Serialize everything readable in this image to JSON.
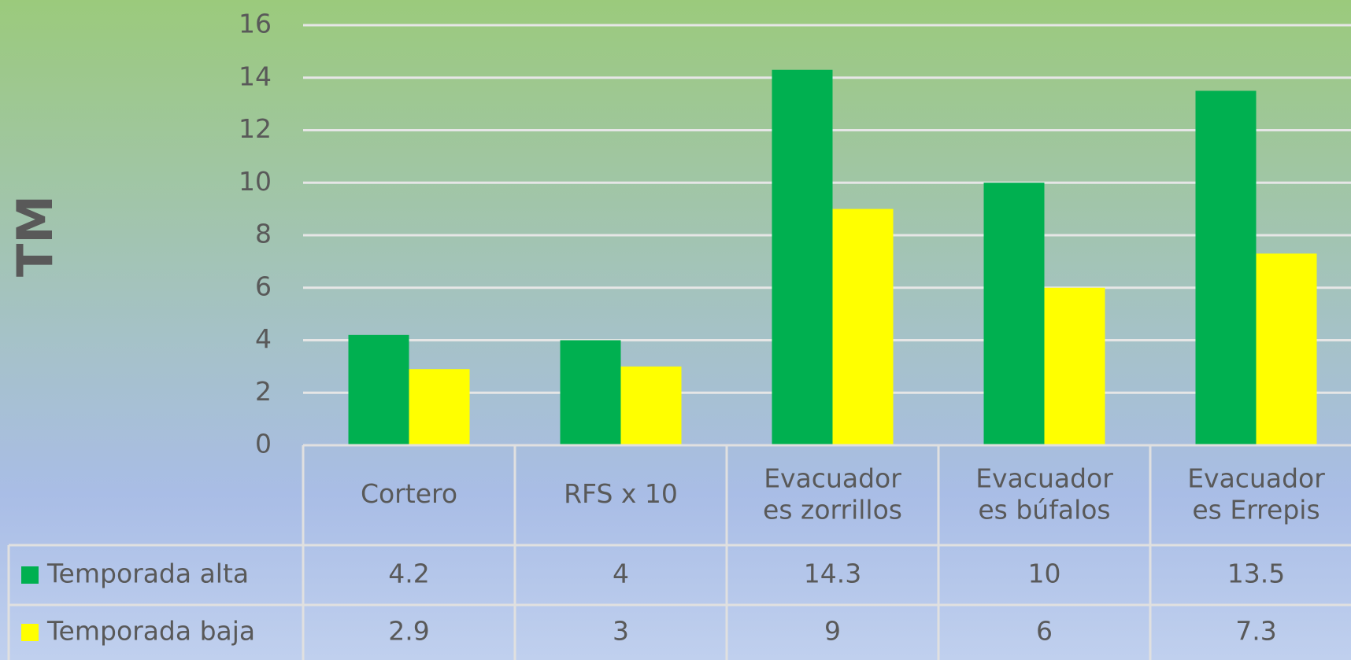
{
  "chart_data": {
    "type": "bar",
    "y_label": "TM",
    "categories": [
      "Cortero",
      "RFS x 10",
      "Evacuadores zorrillos",
      "Evacuadores búfalos",
      "Evacuadores Errepis"
    ],
    "series": [
      {
        "name": "Temporada alta",
        "color": "#00b050",
        "values": [
          4.2,
          4,
          14.3,
          10,
          13.5
        ]
      },
      {
        "name": "Temporada baja",
        "color": "#ffff00",
        "values": [
          2.9,
          3,
          9,
          6,
          7.3
        ]
      }
    ],
    "ylim": [
      0,
      16
    ],
    "yticks": [
      0,
      2,
      4,
      6,
      8,
      10,
      12,
      14,
      16
    ],
    "grid": true,
    "data_table": true
  }
}
